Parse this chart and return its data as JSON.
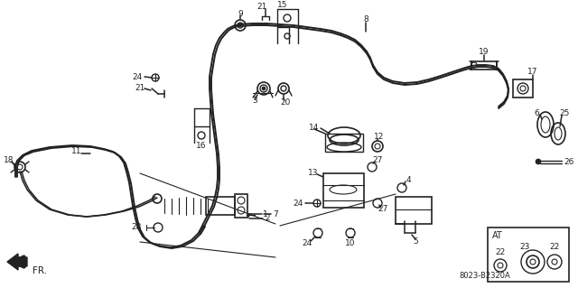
{
  "bg_color": "#ffffff",
  "line_color": "#222222",
  "diagram_code": "8023-B2320A",
  "fs": 6.5
}
